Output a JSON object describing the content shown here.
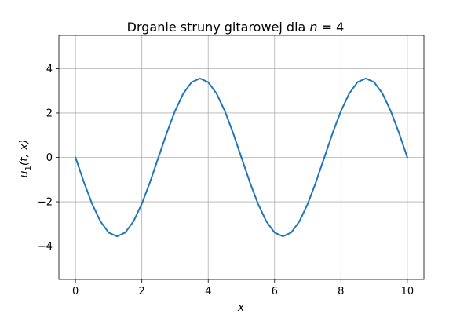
{
  "chart_data": {
    "type": "line",
    "title_prefix": "Drganie struny gitarowej dla ",
    "title_var": "n",
    "title_suffix": " = 4",
    "xlabel": "x",
    "ylabel_main": "u",
    "ylabel_sub": "1",
    "ylabel_args": "(t, x)",
    "xlim": [
      -0.5,
      10.5
    ],
    "ylim": [
      -5.5,
      5.5
    ],
    "xticks": [
      0,
      2,
      4,
      6,
      8,
      10
    ],
    "xtick_labels": [
      "0",
      "2",
      "4",
      "6",
      "8",
      "10"
    ],
    "yticks": [
      -4,
      -2,
      0,
      2,
      4
    ],
    "ytick_labels": [
      "−4",
      "−2",
      "0",
      "2",
      "4"
    ],
    "grid": true,
    "color": "#1f77b4",
    "series": [
      {
        "x": [
          0,
          0.25,
          0.5,
          0.75,
          1.0,
          1.25,
          1.5,
          1.75,
          2.0,
          2.25,
          2.5,
          2.75,
          3.0,
          3.25,
          3.5,
          3.75,
          4.0,
          4.25,
          4.5,
          4.75,
          5.0,
          5.25,
          5.5,
          5.75,
          6.0,
          6.25,
          6.5,
          6.75,
          7.0,
          7.25,
          7.5,
          7.75,
          8.0,
          8.25,
          8.5,
          8.75,
          9.0,
          9.25,
          9.5,
          9.75,
          10.0
        ],
        "y": [
          0.0,
          -1.1,
          -2.09,
          -2.88,
          -3.39,
          -3.56,
          -3.39,
          -2.88,
          -2.09,
          -1.1,
          0.0,
          1.1,
          2.09,
          2.88,
          3.39,
          3.56,
          3.39,
          2.88,
          2.09,
          1.1,
          0.0,
          -1.1,
          -2.09,
          -2.88,
          -3.39,
          -3.56,
          -3.39,
          -2.88,
          -2.09,
          -1.1,
          0.0,
          1.1,
          2.09,
          2.88,
          3.39,
          3.56,
          3.39,
          2.88,
          2.09,
          1.1,
          0.0
        ]
      }
    ]
  }
}
